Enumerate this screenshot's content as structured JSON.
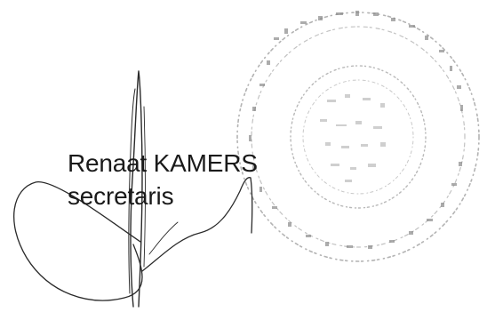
{
  "signer": {
    "name": "Renaat KAMERS",
    "title": "secretaris"
  },
  "stamp": {
    "color": "#9a9a9a"
  },
  "signature": {
    "ink_color": "#2a2a2a"
  }
}
